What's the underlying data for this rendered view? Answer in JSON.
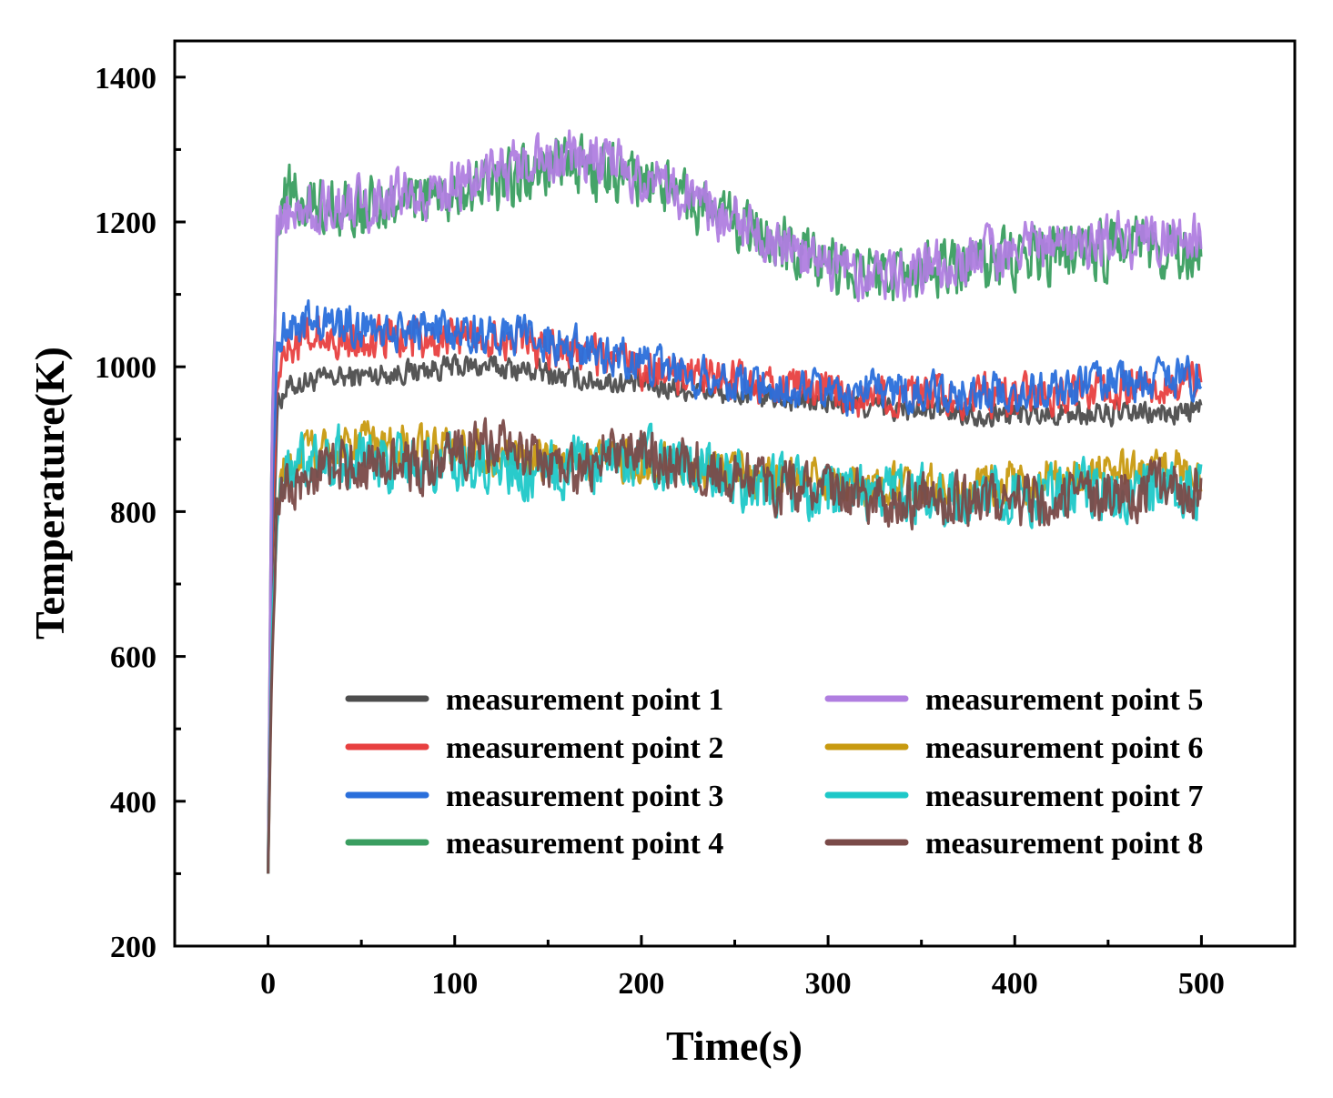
{
  "chart_data": {
    "type": "line",
    "xlabel": "Time(s)",
    "ylabel": "Temperature(K)",
    "xlim": [
      -50,
      550
    ],
    "ylim": [
      200,
      1450
    ],
    "x_ticks": [
      0,
      100,
      200,
      300,
      400,
      500
    ],
    "y_ticks": [
      200,
      400,
      600,
      800,
      1000,
      1200,
      1400
    ],
    "grid": false,
    "legend_position": "bottom-right",
    "legend_columns": 2,
    "series": [
      {
        "name": "measurement point 1",
        "color": "#4d4d4d",
        "noise": 22,
        "x": [
          0,
          2,
          5,
          10,
          20,
          40,
          60,
          80,
          100,
          120,
          140,
          160,
          180,
          200,
          220,
          240,
          260,
          280,
          300,
          320,
          340,
          360,
          380,
          400,
          420,
          440,
          460,
          480,
          500
        ],
        "y": [
          300,
          700,
          950,
          970,
          980,
          985,
          990,
          995,
          1000,
          1000,
          995,
          985,
          980,
          975,
          970,
          965,
          960,
          955,
          950,
          945,
          940,
          940,
          935,
          935,
          935,
          935,
          935,
          935,
          940
        ]
      },
      {
        "name": "measurement point 2",
        "color": "#e84040",
        "noise": 38,
        "x": [
          0,
          2,
          5,
          10,
          20,
          40,
          60,
          80,
          100,
          120,
          140,
          160,
          180,
          200,
          220,
          240,
          260,
          280,
          300,
          320,
          340,
          360,
          380,
          400,
          420,
          440,
          460,
          480,
          500
        ],
        "y": [
          300,
          750,
          1000,
          1030,
          1040,
          1040,
          1040,
          1040,
          1040,
          1040,
          1030,
          1020,
          1010,
          1000,
          990,
          985,
          975,
          970,
          965,
          960,
          960,
          960,
          960,
          960,
          960,
          965,
          970,
          975,
          975
        ]
      },
      {
        "name": "measurement point 3",
        "color": "#2a6fdb",
        "noise": 38,
        "x": [
          0,
          2,
          5,
          10,
          20,
          40,
          60,
          80,
          100,
          120,
          140,
          160,
          180,
          200,
          220,
          240,
          260,
          280,
          300,
          320,
          340,
          360,
          380,
          400,
          420,
          440,
          460,
          480,
          500
        ],
        "y": [
          300,
          800,
          1040,
          1060,
          1060,
          1060,
          1050,
          1050,
          1050,
          1045,
          1040,
          1030,
          1020,
          1005,
          995,
          985,
          975,
          970,
          965,
          965,
          965,
          965,
          965,
          965,
          970,
          975,
          980,
          985,
          985
        ]
      },
      {
        "name": "measurement point 4",
        "color": "#3a9e60",
        "noise": 55,
        "x": [
          0,
          2,
          5,
          10,
          20,
          40,
          60,
          80,
          100,
          120,
          140,
          160,
          180,
          200,
          220,
          240,
          260,
          280,
          300,
          320,
          340,
          360,
          380,
          400,
          420,
          440,
          460,
          480,
          500
        ],
        "y": [
          300,
          900,
          1220,
          1240,
          1230,
          1220,
          1220,
          1230,
          1240,
          1250,
          1270,
          1275,
          1270,
          1255,
          1235,
          1210,
          1185,
          1160,
          1140,
          1130,
          1130,
          1135,
          1145,
          1150,
          1155,
          1160,
          1165,
          1165,
          1165
        ]
      },
      {
        "name": "measurement point 5",
        "color": "#b07ee0",
        "noise": 50,
        "x": [
          0,
          2,
          5,
          10,
          20,
          40,
          60,
          80,
          100,
          120,
          140,
          160,
          180,
          200,
          220,
          240,
          260,
          280,
          300,
          320,
          340,
          360,
          380,
          400,
          420,
          440,
          460,
          480,
          500
        ],
        "y": [
          300,
          900,
          1190,
          1210,
          1220,
          1225,
          1230,
          1240,
          1250,
          1265,
          1280,
          1290,
          1285,
          1265,
          1240,
          1215,
          1185,
          1160,
          1140,
          1130,
          1130,
          1140,
          1150,
          1160,
          1165,
          1170,
          1175,
          1180,
          1185
        ]
      },
      {
        "name": "measurement point 6",
        "color": "#c89a10",
        "noise": 40,
        "x": [
          0,
          2,
          5,
          10,
          20,
          40,
          60,
          80,
          100,
          120,
          140,
          160,
          180,
          200,
          220,
          240,
          260,
          280,
          300,
          320,
          340,
          360,
          380,
          400,
          420,
          440,
          460,
          480,
          500
        ],
        "y": [
          300,
          600,
          820,
          860,
          880,
          900,
          890,
          890,
          890,
          880,
          875,
          870,
          870,
          865,
          860,
          855,
          850,
          845,
          840,
          835,
          835,
          835,
          835,
          840,
          845,
          850,
          855,
          855,
          860
        ]
      },
      {
        "name": "measurement point 7",
        "color": "#1ec8c8",
        "noise": 55,
        "x": [
          0,
          2,
          5,
          10,
          20,
          40,
          60,
          80,
          100,
          120,
          140,
          160,
          180,
          200,
          220,
          240,
          260,
          280,
          300,
          320,
          340,
          360,
          380,
          400,
          420,
          440,
          460,
          480,
          500
        ],
        "y": [
          300,
          620,
          820,
          850,
          870,
          880,
          870,
          870,
          870,
          865,
          860,
          860,
          870,
          870,
          865,
          855,
          840,
          830,
          825,
          820,
          820,
          820,
          820,
          825,
          830,
          830,
          830,
          830,
          825
        ]
      },
      {
        "name": "measurement point 8",
        "color": "#7a4a48",
        "noise": 50,
        "x": [
          0,
          2,
          5,
          10,
          20,
          40,
          60,
          80,
          100,
          120,
          140,
          160,
          180,
          200,
          220,
          240,
          260,
          280,
          300,
          320,
          340,
          360,
          380,
          400,
          420,
          440,
          460,
          480,
          500
        ],
        "y": [
          300,
          580,
          800,
          840,
          850,
          860,
          860,
          860,
          880,
          900,
          870,
          850,
          880,
          880,
          870,
          860,
          840,
          830,
          825,
          820,
          815,
          815,
          815,
          815,
          815,
          820,
          825,
          830,
          830
        ]
      }
    ]
  }
}
